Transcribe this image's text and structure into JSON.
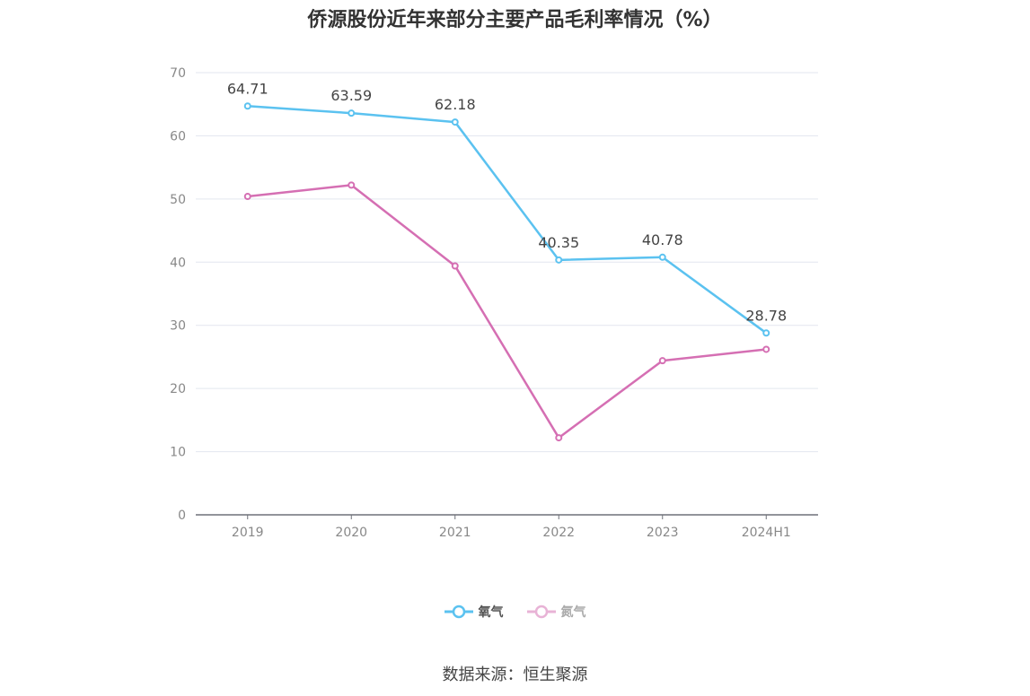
{
  "title": "侨源股份近年来部分主要产品毛利率情况（%）",
  "source": "数据来源：恒生聚源",
  "chart_data": {
    "type": "line",
    "title": "侨源股份近年来部分主要产品毛利率情况（%）",
    "categories": [
      "2019",
      "2020",
      "2021",
      "2022",
      "2023",
      "2024H1"
    ],
    "ylim": [
      0,
      70
    ],
    "yticks": [
      0,
      10,
      20,
      30,
      40,
      50,
      60,
      70
    ],
    "grid": true,
    "legend_position": "bottom",
    "series": [
      {
        "name": "氧气",
        "color": "#5bc2f0",
        "values": [
          64.71,
          63.59,
          62.18,
          40.35,
          40.78,
          28.78
        ],
        "labels_shown": true
      },
      {
        "name": "氮气",
        "color": "#d56fb3",
        "legend_color": "#e8b3d6",
        "values": [
          50.4,
          52.2,
          39.4,
          12.2,
          24.4,
          26.2
        ],
        "labels_shown": false
      }
    ]
  }
}
